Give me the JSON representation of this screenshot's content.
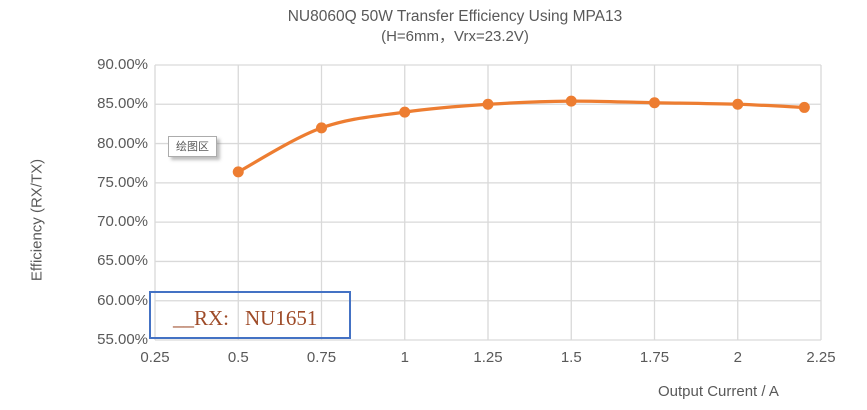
{
  "chart_data": {
    "type": "line",
    "title": "NU8060Q 50W Transfer Efficiency Using MPA13",
    "subtitle": "(H=6mm，Vrx=23.2V)",
    "xlabel": "Output Current / A",
    "ylabel": "Efficiency (RX/TX)",
    "x": [
      0.5,
      0.75,
      1.0,
      1.25,
      1.5,
      1.75,
      2.0,
      2.2
    ],
    "y": [
      76.4,
      82.0,
      84.0,
      85.0,
      85.4,
      85.2,
      85.0,
      84.6
    ],
    "y_unit": "%",
    "xlim": [
      0.25,
      2.25
    ],
    "ylim": [
      55,
      90
    ],
    "x_ticks": [
      0.25,
      0.5,
      0.75,
      1,
      1.25,
      1.5,
      1.75,
      2,
      2.25
    ],
    "x_tick_labels": [
      "0.25",
      "0.5",
      "0.75",
      "1",
      "1.25",
      "1.5",
      "1.75",
      "2",
      "2.25"
    ],
    "y_ticks": [
      55,
      60,
      65,
      70,
      75,
      80,
      85,
      90
    ],
    "y_tick_labels": [
      "55.00%",
      "60.00%",
      "65.00%",
      "70.00%",
      "75.00%",
      "80.00%",
      "85.00%",
      "90.00%"
    ],
    "grid": true,
    "smooth": true,
    "legend": "none",
    "series_color": "#ED7D31"
  },
  "overlays": {
    "plot_area_tooltip": "绘图区",
    "textbox": {
      "label": "__RX:",
      "value": "NU1651"
    }
  },
  "colors": {
    "series_orange": "#ED7D31",
    "gridline": "#D9D9D9",
    "text_gray": "#595959",
    "textbox_border_blue": "#4472C4",
    "textbox_text_brown": "#9E4B28",
    "tooltip_border": "#ACACAC",
    "background": "#FFFFFF"
  }
}
